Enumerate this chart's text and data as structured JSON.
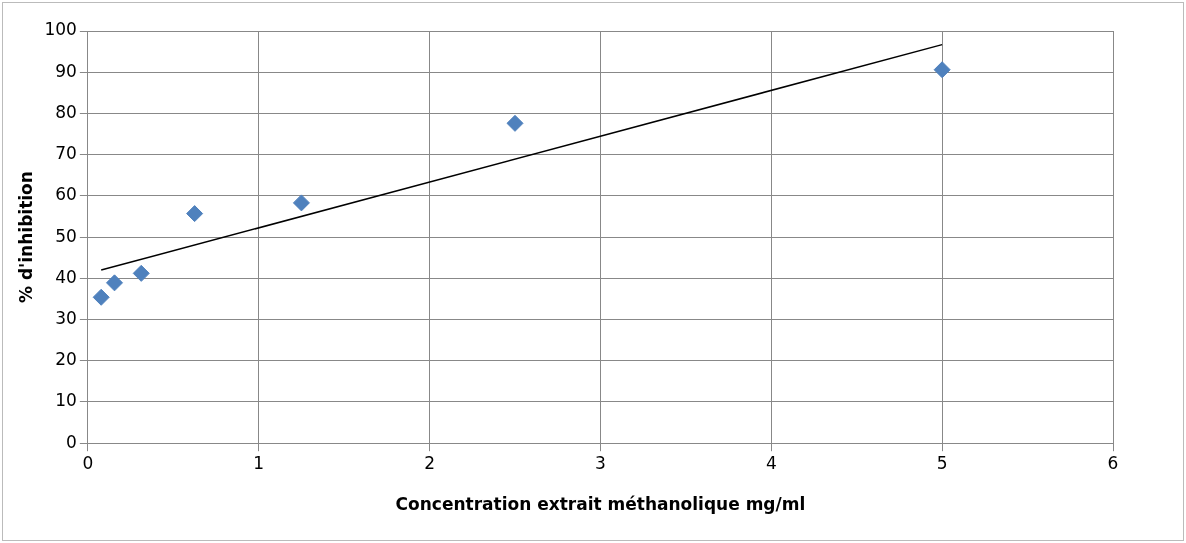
{
  "chart_data": {
    "type": "scatter",
    "xlabel": "Concentration extrait méthanolique mg/ml",
    "ylabel": "% d'inhibition",
    "series": [
      {
        "type": "scatter",
        "color": "#4f81bd",
        "x": [
          0.078,
          0.156,
          0.3125,
          0.625,
          1.25,
          2.5,
          5
        ],
        "values": [
          35.4,
          38.9,
          41.2,
          55.7,
          58.3,
          77.6,
          90.6
        ],
        "marker": "diamond"
      },
      {
        "type": "line",
        "color": "#000000",
        "x": [
          0.078,
          5
        ],
        "values": [
          42.0,
          96.7
        ],
        "marker": "none"
      }
    ],
    "xlim": [
      0,
      6
    ],
    "xticks": [
      0,
      1,
      2,
      3,
      4,
      5,
      6
    ],
    "ylim": [
      0,
      100
    ],
    "yticks": [
      0,
      10,
      20,
      30,
      40,
      50,
      60,
      70,
      80,
      90,
      100
    ],
    "grid": true,
    "legend": false
  }
}
